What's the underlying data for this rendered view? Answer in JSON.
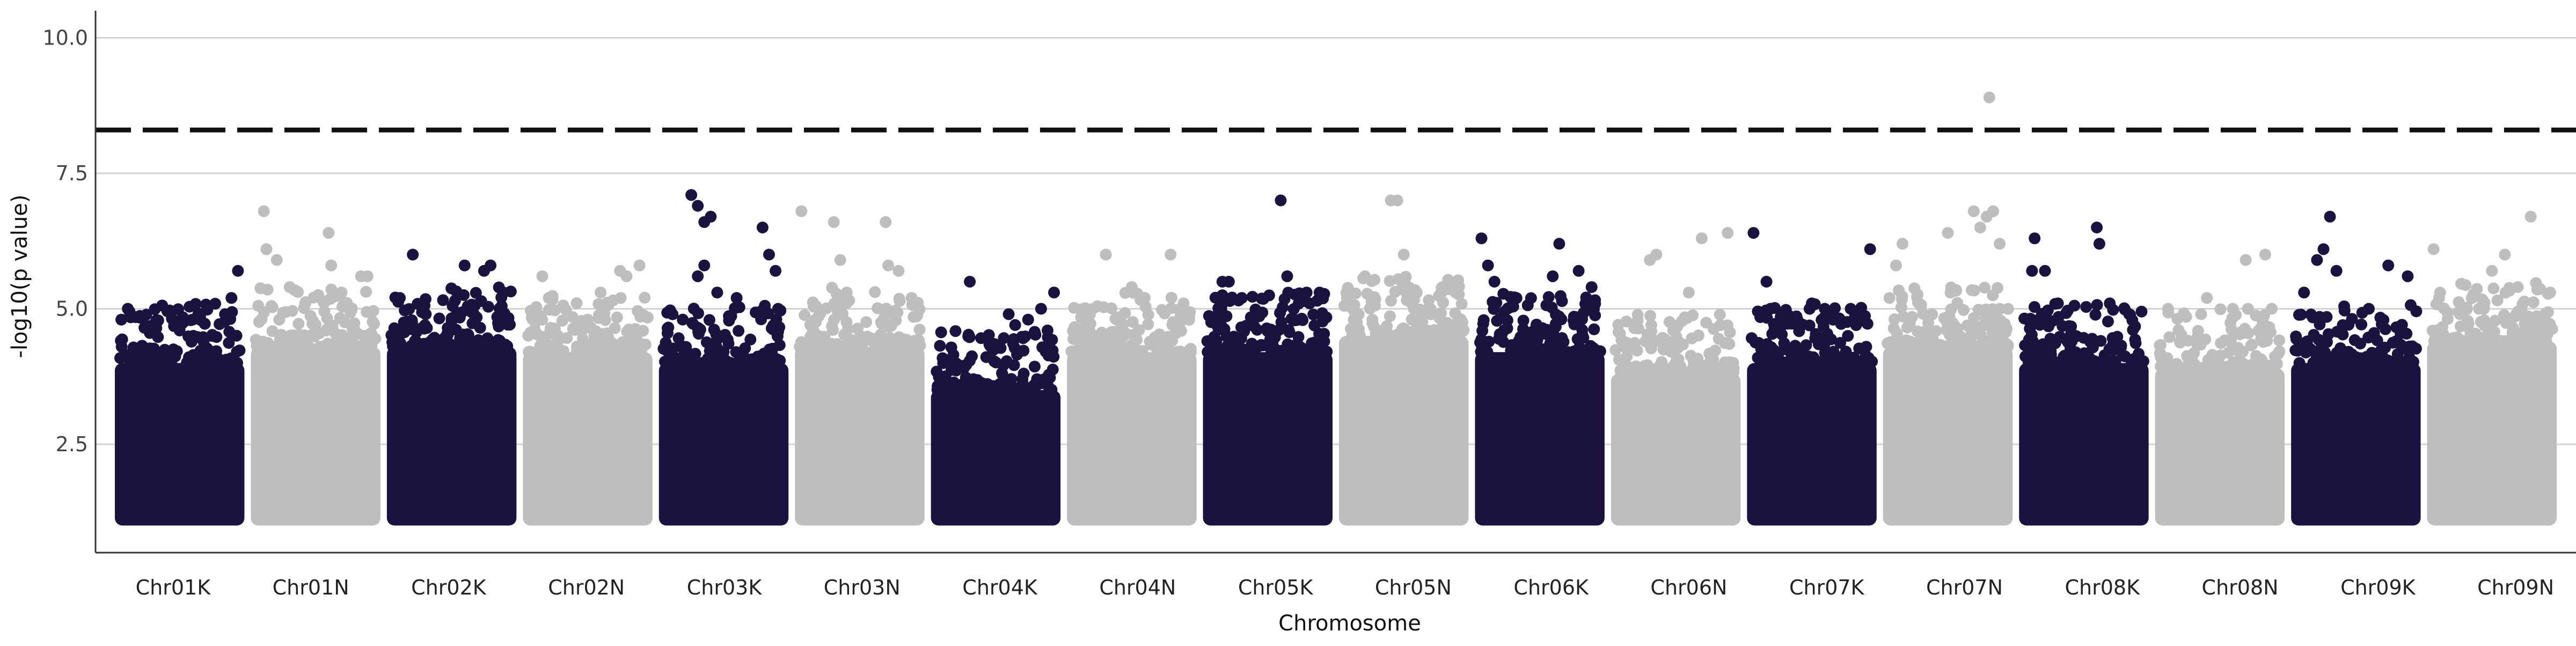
{
  "chart_data": {
    "type": "scatter",
    "subtype": "manhattan",
    "title": "",
    "xlabel": "Chromosome",
    "ylabel": "-log10(p value)",
    "ylim": [
      0.5,
      10.5
    ],
    "yticks": [
      2.5,
      5.0,
      7.5,
      10.0
    ],
    "ytick_labels": [
      "2.5",
      "5.0",
      "7.5",
      "10.0"
    ],
    "grid": "horizontal",
    "legend": "none",
    "threshold": 8.3,
    "min_value": 1.0,
    "colors": {
      "dark": "#1c1240",
      "light": "#bebebe"
    },
    "categories": [
      "Chr01K",
      "Chr01N",
      "Chr02K",
      "Chr02N",
      "Chr03K",
      "Chr03N",
      "Chr04K",
      "Chr04N",
      "Chr05K",
      "Chr05N",
      "Chr06K",
      "Chr06N",
      "Chr07K",
      "Chr07N",
      "Chr08K",
      "Chr08N",
      "Chr09K",
      "Chr09N"
    ],
    "series": [
      {
        "chromosome": "Chr01K",
        "color": "dark",
        "bulk_top": 4.0,
        "peaks": [
          [
            0.05,
            4.8
          ],
          [
            0.1,
            5.0
          ],
          [
            0.3,
            4.7
          ],
          [
            0.5,
            4.6
          ],
          [
            0.6,
            4.8
          ],
          [
            0.75,
            4.5
          ],
          [
            0.85,
            4.9
          ],
          [
            0.9,
            5.2
          ],
          [
            0.95,
            5.7
          ]
        ]
      },
      {
        "chromosome": "Chr01N",
        "color": "light",
        "bulk_top": 4.3,
        "peaks": [
          [
            0.1,
            6.8
          ],
          [
            0.12,
            6.1
          ],
          [
            0.2,
            5.9
          ],
          [
            0.3,
            5.4
          ],
          [
            0.6,
            6.4
          ],
          [
            0.62,
            5.8
          ],
          [
            0.7,
            5.3
          ],
          [
            0.85,
            5.6
          ],
          [
            0.9,
            5.6
          ]
        ]
      },
      {
        "chromosome": "Chr02K",
        "color": "dark",
        "bulk_top": 4.3,
        "peaks": [
          [
            0.1,
            5.2
          ],
          [
            0.2,
            6.0
          ],
          [
            0.3,
            4.9
          ],
          [
            0.5,
            4.8
          ],
          [
            0.6,
            5.8
          ],
          [
            0.75,
            5.7
          ],
          [
            0.8,
            5.8
          ],
          [
            0.9,
            5.3
          ]
        ]
      },
      {
        "chromosome": "Chr02N",
        "color": "light",
        "bulk_top": 4.2,
        "peaks": [
          [
            0.15,
            5.6
          ],
          [
            0.2,
            5.2
          ],
          [
            0.5,
            4.8
          ],
          [
            0.6,
            5.3
          ],
          [
            0.75,
            5.7
          ],
          [
            0.8,
            5.6
          ],
          [
            0.9,
            5.8
          ]
        ]
      },
      {
        "chromosome": "Chr03K",
        "color": "dark",
        "bulk_top": 4.0,
        "peaks": [
          [
            0.25,
            7.1
          ],
          [
            0.3,
            6.9
          ],
          [
            0.35,
            6.6
          ],
          [
            0.4,
            6.7
          ],
          [
            0.3,
            5.6
          ],
          [
            0.45,
            5.3
          ],
          [
            0.6,
            5.2
          ],
          [
            0.8,
            6.5
          ],
          [
            0.85,
            6.0
          ],
          [
            0.9,
            5.7
          ],
          [
            0.92,
            5.0
          ],
          [
            0.35,
            5.8
          ]
        ]
      },
      {
        "chromosome": "Chr03N",
        "color": "light",
        "bulk_top": 4.3,
        "peaks": [
          [
            0.05,
            6.8
          ],
          [
            0.3,
            6.6
          ],
          [
            0.35,
            5.9
          ],
          [
            0.4,
            5.3
          ],
          [
            0.7,
            6.6
          ],
          [
            0.72,
            5.8
          ],
          [
            0.8,
            5.7
          ],
          [
            0.9,
            5.2
          ]
        ]
      },
      {
        "chromosome": "Chr04K",
        "color": "dark",
        "bulk_top": 3.5,
        "peaks": [
          [
            0.3,
            5.5
          ],
          [
            0.6,
            4.9
          ],
          [
            0.65,
            4.7
          ],
          [
            0.75,
            4.8
          ],
          [
            0.85,
            5.0
          ],
          [
            0.9,
            4.6
          ],
          [
            0.95,
            5.3
          ]
        ]
      },
      {
        "chromosome": "Chr04N",
        "color": "light",
        "bulk_top": 4.2,
        "peaks": [
          [
            0.2,
            5.0
          ],
          [
            0.3,
            6.0
          ],
          [
            0.5,
            5.4
          ],
          [
            0.6,
            5.2
          ],
          [
            0.8,
            6.0
          ],
          [
            0.9,
            5.1
          ]
        ]
      },
      {
        "chromosome": "Chr05K",
        "color": "dark",
        "bulk_top": 4.2,
        "peaks": [
          [
            0.15,
            5.5
          ],
          [
            0.2,
            5.5
          ],
          [
            0.3,
            5.2
          ],
          [
            0.6,
            7.0
          ],
          [
            0.65,
            5.6
          ],
          [
            0.8,
            5.3
          ],
          [
            0.9,
            5.3
          ]
        ]
      },
      {
        "chromosome": "Chr05N",
        "color": "light",
        "bulk_top": 4.5,
        "peaks": [
          [
            0.2,
            5.6
          ],
          [
            0.4,
            7.0
          ],
          [
            0.45,
            7.0
          ],
          [
            0.5,
            6.0
          ],
          [
            0.6,
            5.3
          ],
          [
            0.8,
            5.4
          ],
          [
            0.9,
            5.3
          ]
        ]
      },
      {
        "chromosome": "Chr06K",
        "color": "dark",
        "bulk_top": 4.2,
        "peaks": [
          [
            0.05,
            6.3
          ],
          [
            0.1,
            5.8
          ],
          [
            0.15,
            5.5
          ],
          [
            0.3,
            5.2
          ],
          [
            0.6,
            5.6
          ],
          [
            0.65,
            6.2
          ],
          [
            0.8,
            5.7
          ],
          [
            0.9,
            5.4
          ]
        ]
      },
      {
        "chromosome": "Chr06N",
        "color": "light",
        "bulk_top": 3.8,
        "peaks": [
          [
            0.3,
            5.9
          ],
          [
            0.35,
            6.0
          ],
          [
            0.6,
            5.3
          ],
          [
            0.7,
            6.3
          ],
          [
            0.9,
            6.4
          ]
        ]
      },
      {
        "chromosome": "Chr07K",
        "color": "dark",
        "bulk_top": 4.0,
        "peaks": [
          [
            0.05,
            6.4
          ],
          [
            0.15,
            5.5
          ],
          [
            0.3,
            4.9
          ],
          [
            0.5,
            5.1
          ],
          [
            0.6,
            5.0
          ],
          [
            0.8,
            5.0
          ],
          [
            0.95,
            6.1
          ]
        ]
      },
      {
        "chromosome": "Chr07N",
        "color": "light",
        "bulk_top": 4.3,
        "peaks": [
          [
            0.05,
            5.2
          ],
          [
            0.1,
            5.8
          ],
          [
            0.15,
            6.2
          ],
          [
            0.5,
            6.4
          ],
          [
            0.7,
            6.8
          ],
          [
            0.75,
            6.5
          ],
          [
            0.8,
            6.7
          ],
          [
            0.82,
            8.9
          ],
          [
            0.85,
            6.8
          ],
          [
            0.9,
            6.2
          ]
        ]
      },
      {
        "chromosome": "Chr08K",
        "color": "dark",
        "bulk_top": 4.0,
        "peaks": [
          [
            0.1,
            5.7
          ],
          [
            0.12,
            6.3
          ],
          [
            0.2,
            5.7
          ],
          [
            0.3,
            5.1
          ],
          [
            0.6,
            6.5
          ],
          [
            0.62,
            6.2
          ],
          [
            0.7,
            5.1
          ],
          [
            0.85,
            4.9
          ]
        ]
      },
      {
        "chromosome": "Chr08N",
        "color": "light",
        "bulk_top": 3.9,
        "peaks": [
          [
            0.1,
            5.0
          ],
          [
            0.4,
            5.2
          ],
          [
            0.6,
            5.0
          ],
          [
            0.7,
            5.9
          ],
          [
            0.85,
            6.0
          ],
          [
            0.9,
            5.0
          ]
        ]
      },
      {
        "chromosome": "Chr09K",
        "color": "dark",
        "bulk_top": 4.0,
        "peaks": [
          [
            0.1,
            5.3
          ],
          [
            0.2,
            5.9
          ],
          [
            0.25,
            6.1
          ],
          [
            0.3,
            6.7
          ],
          [
            0.35,
            5.7
          ],
          [
            0.6,
            5.0
          ],
          [
            0.75,
            5.8
          ],
          [
            0.9,
            5.6
          ]
        ]
      },
      {
        "chromosome": "Chr09N",
        "color": "light",
        "bulk_top": 4.4,
        "peaks": [
          [
            0.05,
            6.1
          ],
          [
            0.1,
            5.3
          ],
          [
            0.4,
            5.0
          ],
          [
            0.5,
            5.7
          ],
          [
            0.6,
            6.0
          ],
          [
            0.7,
            5.4
          ],
          [
            0.8,
            6.7
          ],
          [
            0.95,
            5.3
          ]
        ]
      }
    ]
  }
}
